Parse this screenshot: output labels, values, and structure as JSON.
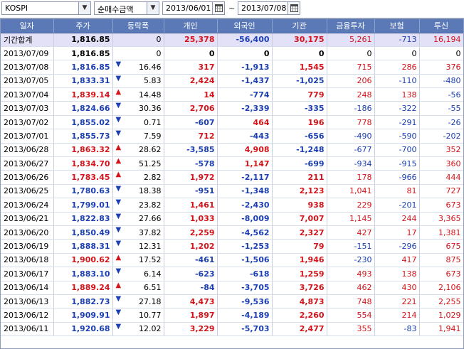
{
  "toolbar": {
    "market": "KOSPI",
    "type": "순매수금액",
    "date_from": "2013/06/01",
    "date_to": "2013/07/08",
    "separator": "~"
  },
  "columns": [
    "일자",
    "주가",
    "등락폭",
    "개인",
    "외국인",
    "기관",
    "금융투자",
    "보험",
    "투신"
  ],
  "summary": {
    "label": "기간합계",
    "price": "1,816.85",
    "change": "0",
    "individual": "25,378",
    "foreign": "-56,400",
    "institution": "30,175",
    "fin_invest": "5,261",
    "insurance": "-713",
    "trust": "16,194"
  },
  "rows": [
    {
      "date": "2013/07/09",
      "price": "1,816.85",
      "dir": "flat",
      "change": "0",
      "individual": "0",
      "foreign": "0",
      "institution": "0",
      "fin_invest": "0",
      "insurance": "0",
      "trust": "0"
    },
    {
      "date": "2013/07/08",
      "price": "1,816.85",
      "dir": "down",
      "change": "16.46",
      "individual": "317",
      "foreign": "-1,913",
      "institution": "1,545",
      "fin_invest": "715",
      "insurance": "286",
      "trust": "376"
    },
    {
      "date": "2013/07/05",
      "price": "1,833.31",
      "dir": "down",
      "change": "5.83",
      "individual": "2,424",
      "foreign": "-1,437",
      "institution": "-1,025",
      "fin_invest": "206",
      "insurance": "-110",
      "trust": "-480"
    },
    {
      "date": "2013/07/04",
      "price": "1,839.14",
      "dir": "up",
      "change": "14.48",
      "individual": "14",
      "foreign": "-774",
      "institution": "779",
      "fin_invest": "248",
      "insurance": "138",
      "trust": "-56"
    },
    {
      "date": "2013/07/03",
      "price": "1,824.66",
      "dir": "down",
      "change": "30.36",
      "individual": "2,706",
      "foreign": "-2,339",
      "institution": "-335",
      "fin_invest": "-186",
      "insurance": "-322",
      "trust": "-55"
    },
    {
      "date": "2013/07/02",
      "price": "1,855.02",
      "dir": "down",
      "change": "0.71",
      "individual": "-607",
      "foreign": "464",
      "institution": "196",
      "fin_invest": "778",
      "insurance": "-291",
      "trust": "-26"
    },
    {
      "date": "2013/07/01",
      "price": "1,855.73",
      "dir": "down",
      "change": "7.59",
      "individual": "712",
      "foreign": "-443",
      "institution": "-656",
      "fin_invest": "-490",
      "insurance": "-590",
      "trust": "-202"
    },
    {
      "date": "2013/06/28",
      "price": "1,863.32",
      "dir": "up",
      "change": "28.62",
      "individual": "-3,585",
      "foreign": "4,908",
      "institution": "-1,248",
      "fin_invest": "-677",
      "insurance": "-700",
      "trust": "352"
    },
    {
      "date": "2013/06/27",
      "price": "1,834.70",
      "dir": "up",
      "change": "51.25",
      "individual": "-578",
      "foreign": "1,147",
      "institution": "-699",
      "fin_invest": "-934",
      "insurance": "-915",
      "trust": "360"
    },
    {
      "date": "2013/06/26",
      "price": "1,783.45",
      "dir": "up",
      "change": "2.82",
      "individual": "1,972",
      "foreign": "-2,117",
      "institution": "211",
      "fin_invest": "178",
      "insurance": "-966",
      "trust": "444"
    },
    {
      "date": "2013/06/25",
      "price": "1,780.63",
      "dir": "down",
      "change": "18.38",
      "individual": "-951",
      "foreign": "-1,348",
      "institution": "2,123",
      "fin_invest": "1,041",
      "insurance": "81",
      "trust": "727"
    },
    {
      "date": "2013/06/24",
      "price": "1,799.01",
      "dir": "down",
      "change": "23.82",
      "individual": "1,461",
      "foreign": "-2,430",
      "institution": "938",
      "fin_invest": "229",
      "insurance": "-201",
      "trust": "673"
    },
    {
      "date": "2013/06/21",
      "price": "1,822.83",
      "dir": "down",
      "change": "27.66",
      "individual": "1,033",
      "foreign": "-8,009",
      "institution": "7,007",
      "fin_invest": "1,145",
      "insurance": "244",
      "trust": "3,365"
    },
    {
      "date": "2013/06/20",
      "price": "1,850.49",
      "dir": "down",
      "change": "37.82",
      "individual": "2,259",
      "foreign": "-4,562",
      "institution": "2,327",
      "fin_invest": "427",
      "insurance": "17",
      "trust": "1,381"
    },
    {
      "date": "2013/06/19",
      "price": "1,888.31",
      "dir": "down",
      "change": "12.31",
      "individual": "1,202",
      "foreign": "-1,253",
      "institution": "79",
      "fin_invest": "-151",
      "insurance": "-296",
      "trust": "675"
    },
    {
      "date": "2013/06/18",
      "price": "1,900.62",
      "dir": "up",
      "change": "17.52",
      "individual": "-461",
      "foreign": "-1,506",
      "institution": "1,946",
      "fin_invest": "-230",
      "insurance": "417",
      "trust": "875"
    },
    {
      "date": "2013/06/17",
      "price": "1,883.10",
      "dir": "down",
      "change": "6.14",
      "individual": "-623",
      "foreign": "-618",
      "institution": "1,259",
      "fin_invest": "493",
      "insurance": "138",
      "trust": "673"
    },
    {
      "date": "2013/06/14",
      "price": "1,889.24",
      "dir": "up",
      "change": "6.51",
      "individual": "-84",
      "foreign": "-3,705",
      "institution": "3,726",
      "fin_invest": "462",
      "insurance": "430",
      "trust": "2,106"
    },
    {
      "date": "2013/06/13",
      "price": "1,882.73",
      "dir": "down",
      "change": "27.18",
      "individual": "4,473",
      "foreign": "-9,536",
      "institution": "4,873",
      "fin_invest": "748",
      "insurance": "221",
      "trust": "2,255"
    },
    {
      "date": "2013/06/12",
      "price": "1,909.91",
      "dir": "down",
      "change": "10.77",
      "individual": "1,897",
      "foreign": "-4,189",
      "institution": "2,260",
      "fin_invest": "554",
      "insurance": "214",
      "trust": "1,029"
    },
    {
      "date": "2013/06/11",
      "price": "1,920.68",
      "dir": "down",
      "change": "12.02",
      "individual": "3,229",
      "foreign": "-5,703",
      "institution": "2,477",
      "fin_invest": "355",
      "insurance": "-83",
      "trust": "1,941"
    }
  ],
  "colors": {
    "up": "#d4141a",
    "down": "#1b3fb2",
    "header_bg": "#5b79b6",
    "summary_bg": "#e3e1f7"
  }
}
